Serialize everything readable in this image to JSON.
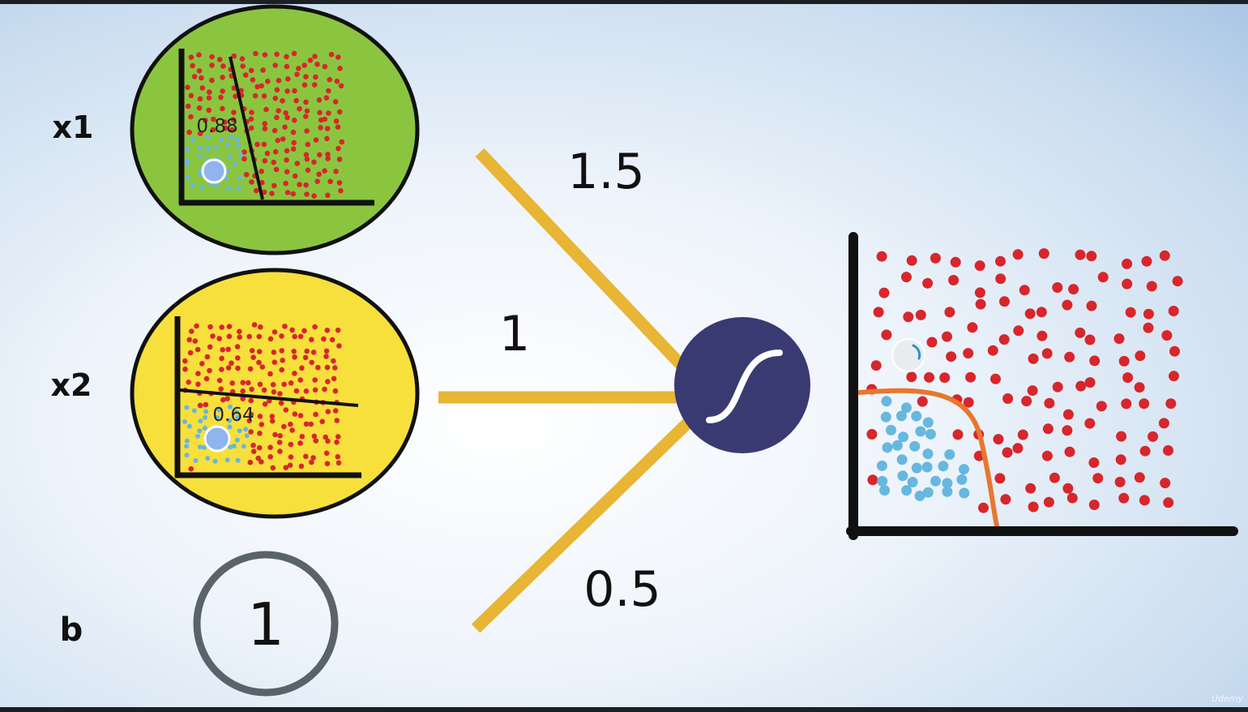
{
  "inputs": {
    "x1": {
      "label": "x1",
      "probability": "0.88"
    },
    "x2": {
      "label": "x2",
      "probability": "0.64"
    },
    "bias": {
      "label": "b",
      "value": "1"
    }
  },
  "weights": {
    "w1": "1.5",
    "w2": "1",
    "wb": "0.5"
  },
  "activation": {
    "icon": "sigmoid-icon",
    "color": "#3a3a72"
  },
  "colors": {
    "x1_fill": "#8bc540",
    "x2_fill": "#f7df3c",
    "edge": "#e8b534",
    "red_point": "#d7262c",
    "blue_point": "#67b7df",
    "boundary": "#e8772e",
    "bias_ring": "#5a626a"
  },
  "watermark": "Udemy"
}
